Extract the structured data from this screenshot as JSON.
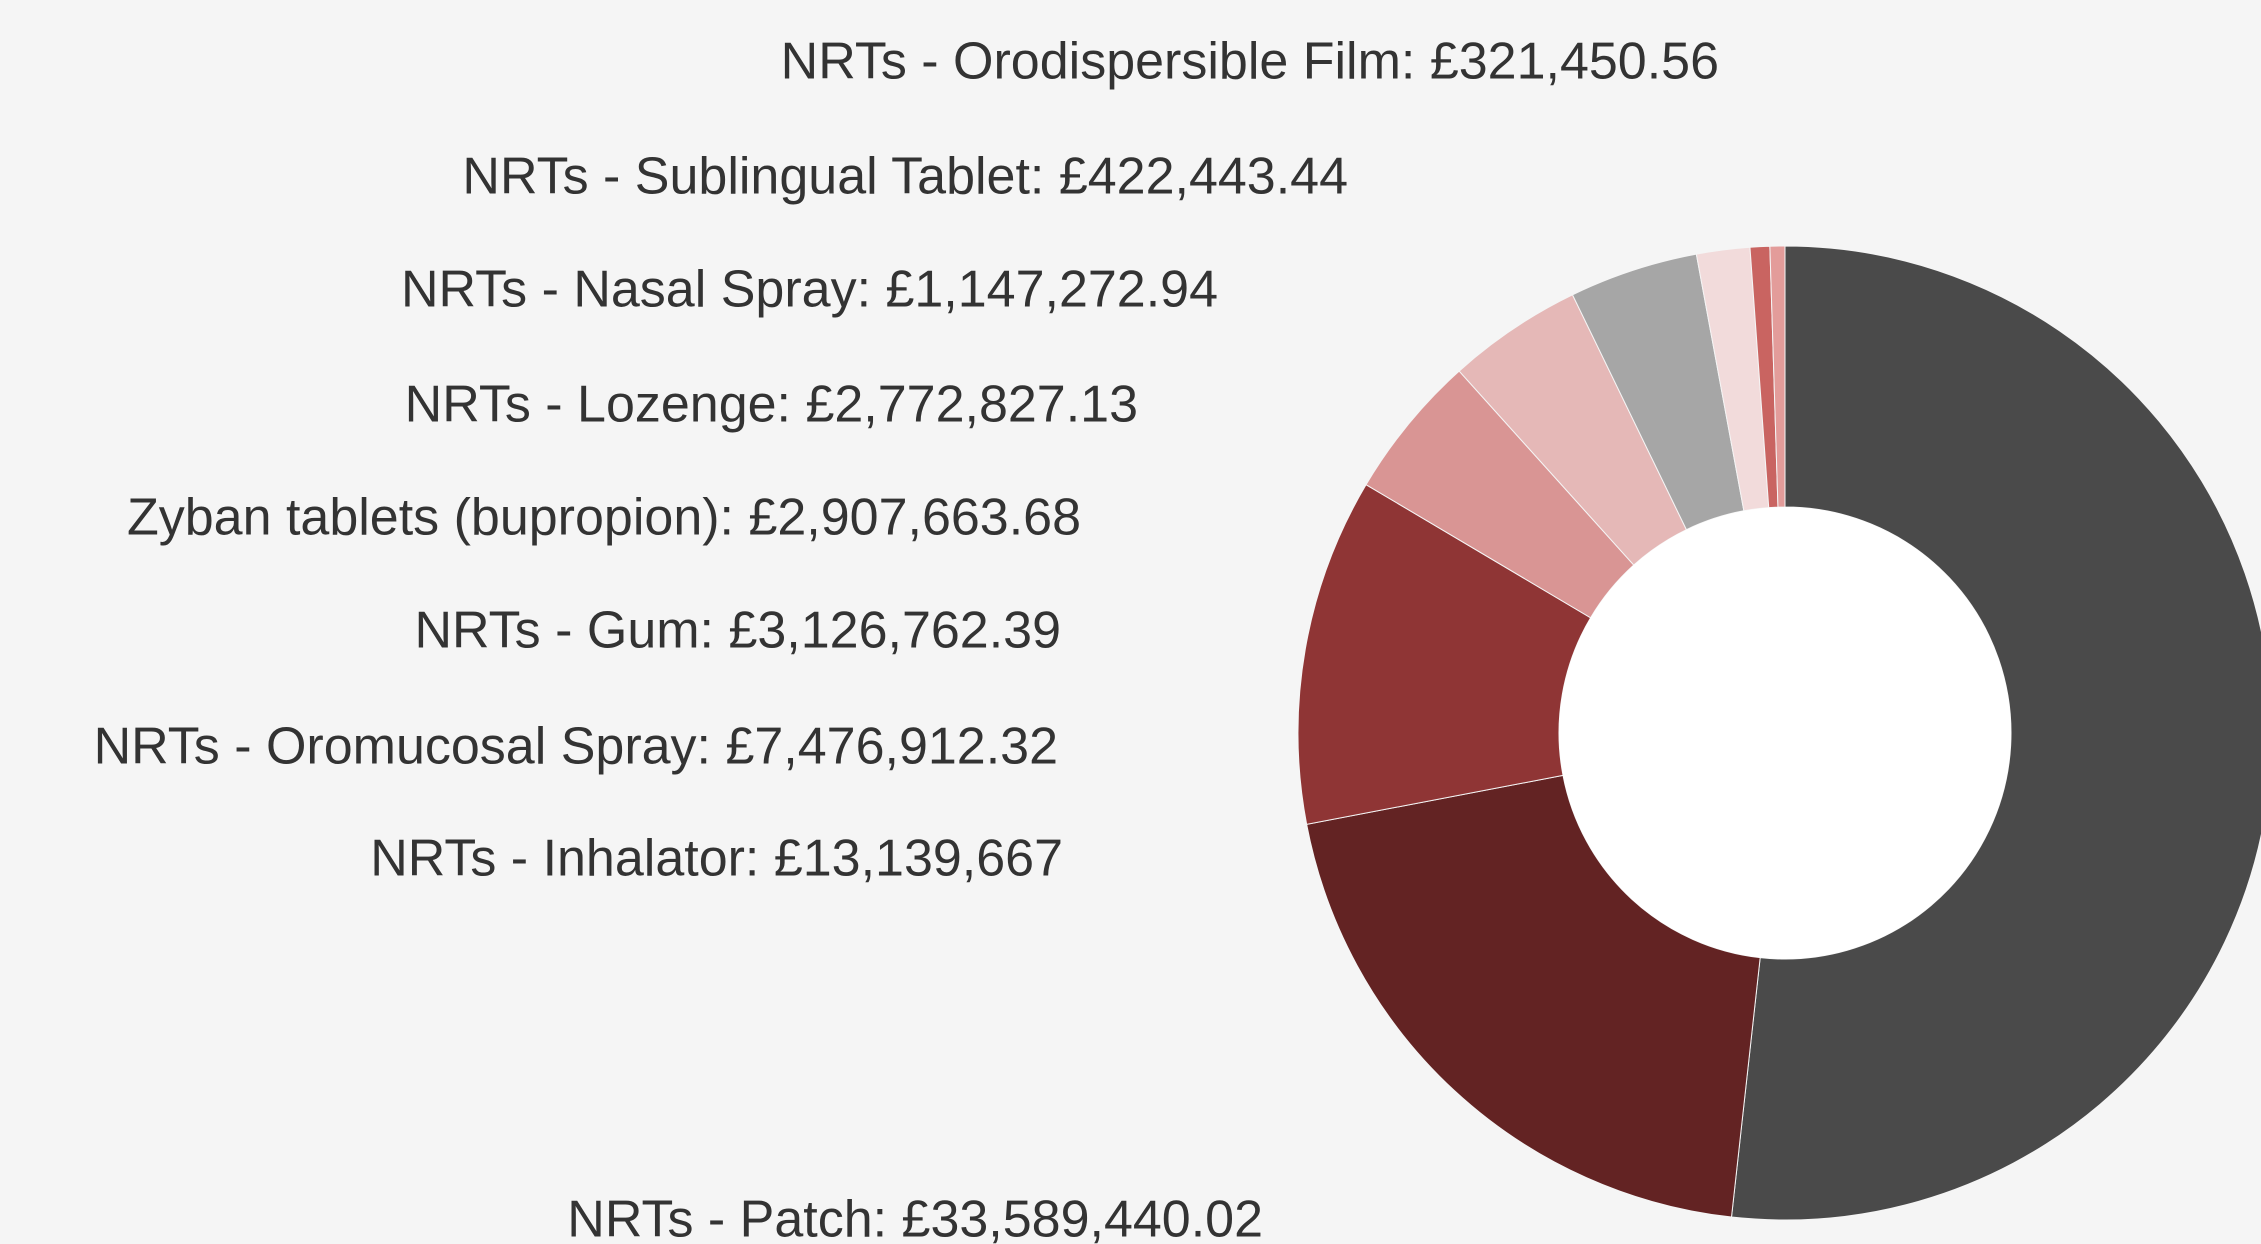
{
  "chart_data": {
    "type": "donut",
    "categories": [
      "NRTs - Patch: £33,589,440.02",
      "NRTs - Inhalator: £13,139,667",
      "NRTs - Oromucosal Spray: £7,476,912.32",
      "NRTs - Gum: £3,126,762.39",
      "Zyban tablets (bupropion): £2,907,663.68",
      "NRTs - Lozenge: £2,772,827.13",
      "NRTs - Nasal Spray: £1,147,272.94",
      "NRTs - Sublingual Tablet: £422,443.44",
      "NRTs - Orodispersible Film: £321,450.56"
    ],
    "values": [
      33589440.02,
      13139667,
      7476912.32,
      3126762.39,
      2907663.68,
      2772827.13,
      1147272.94,
      422443.44,
      321450.56
    ],
    "colors": [
      "#4a4a4a",
      "#632323",
      "#8f3535",
      "#d99594",
      "#e5b8b7",
      "#a6a6a6",
      "#f2dbdb",
      "#c96461",
      "#e39c9a"
    ]
  }
}
